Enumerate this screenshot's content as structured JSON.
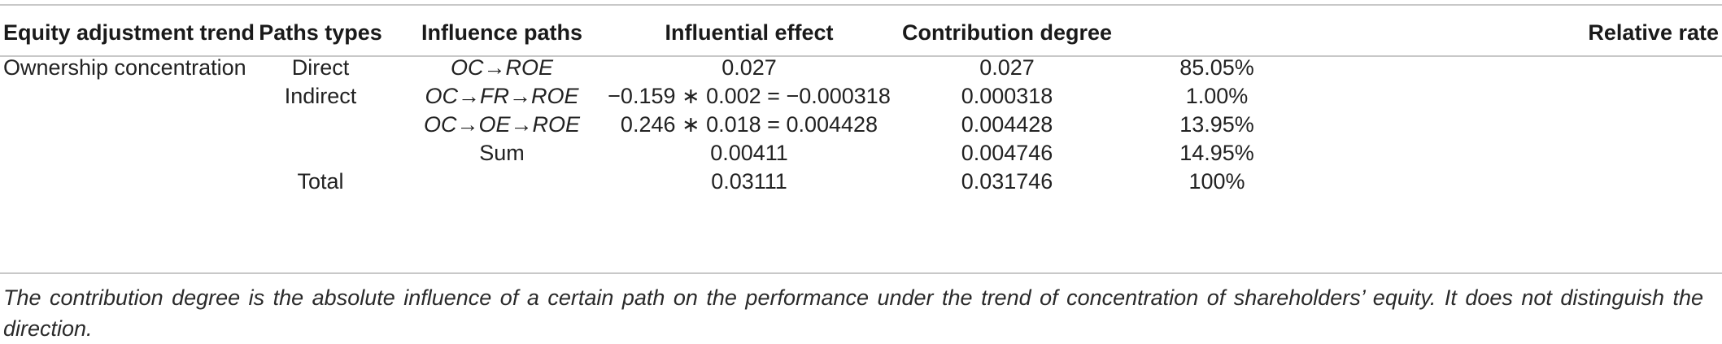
{
  "table": {
    "headers": [
      "Equity adjustment trend",
      "Paths types",
      "Influence paths",
      "Influential effect",
      "Contribution degree",
      "Relative rate"
    ],
    "rows": [
      {
        "trend": "Ownership concentration",
        "type": "Direct",
        "path": "OC→ROE",
        "effect": "0.027",
        "contribution": "0.027",
        "rate": "85.05%"
      },
      {
        "trend": "",
        "type": "Indirect",
        "path": "OC→FR→ROE",
        "effect": "−0.159 ∗ 0.002 = −0.000318",
        "contribution": "0.000318",
        "rate": "1.00%"
      },
      {
        "trend": "",
        "type": "",
        "path": "OC→OE→ROE",
        "effect": "0.246 ∗ 0.018 = 0.004428",
        "contribution": "0.004428",
        "rate": "13.95%"
      },
      {
        "trend": "",
        "type": "",
        "path": "Sum",
        "effect": "0.00411",
        "contribution": "0.004746",
        "rate": "14.95%"
      },
      {
        "trend": "",
        "type": "Total",
        "path": "",
        "effect": "0.03111",
        "contribution": "0.031746",
        "rate": "100%"
      }
    ]
  },
  "footnote": "The contribution degree is the absolute influence of a certain path on the performance under the trend of concentration of shareholders’ equity. It does not distinguish the direction."
}
